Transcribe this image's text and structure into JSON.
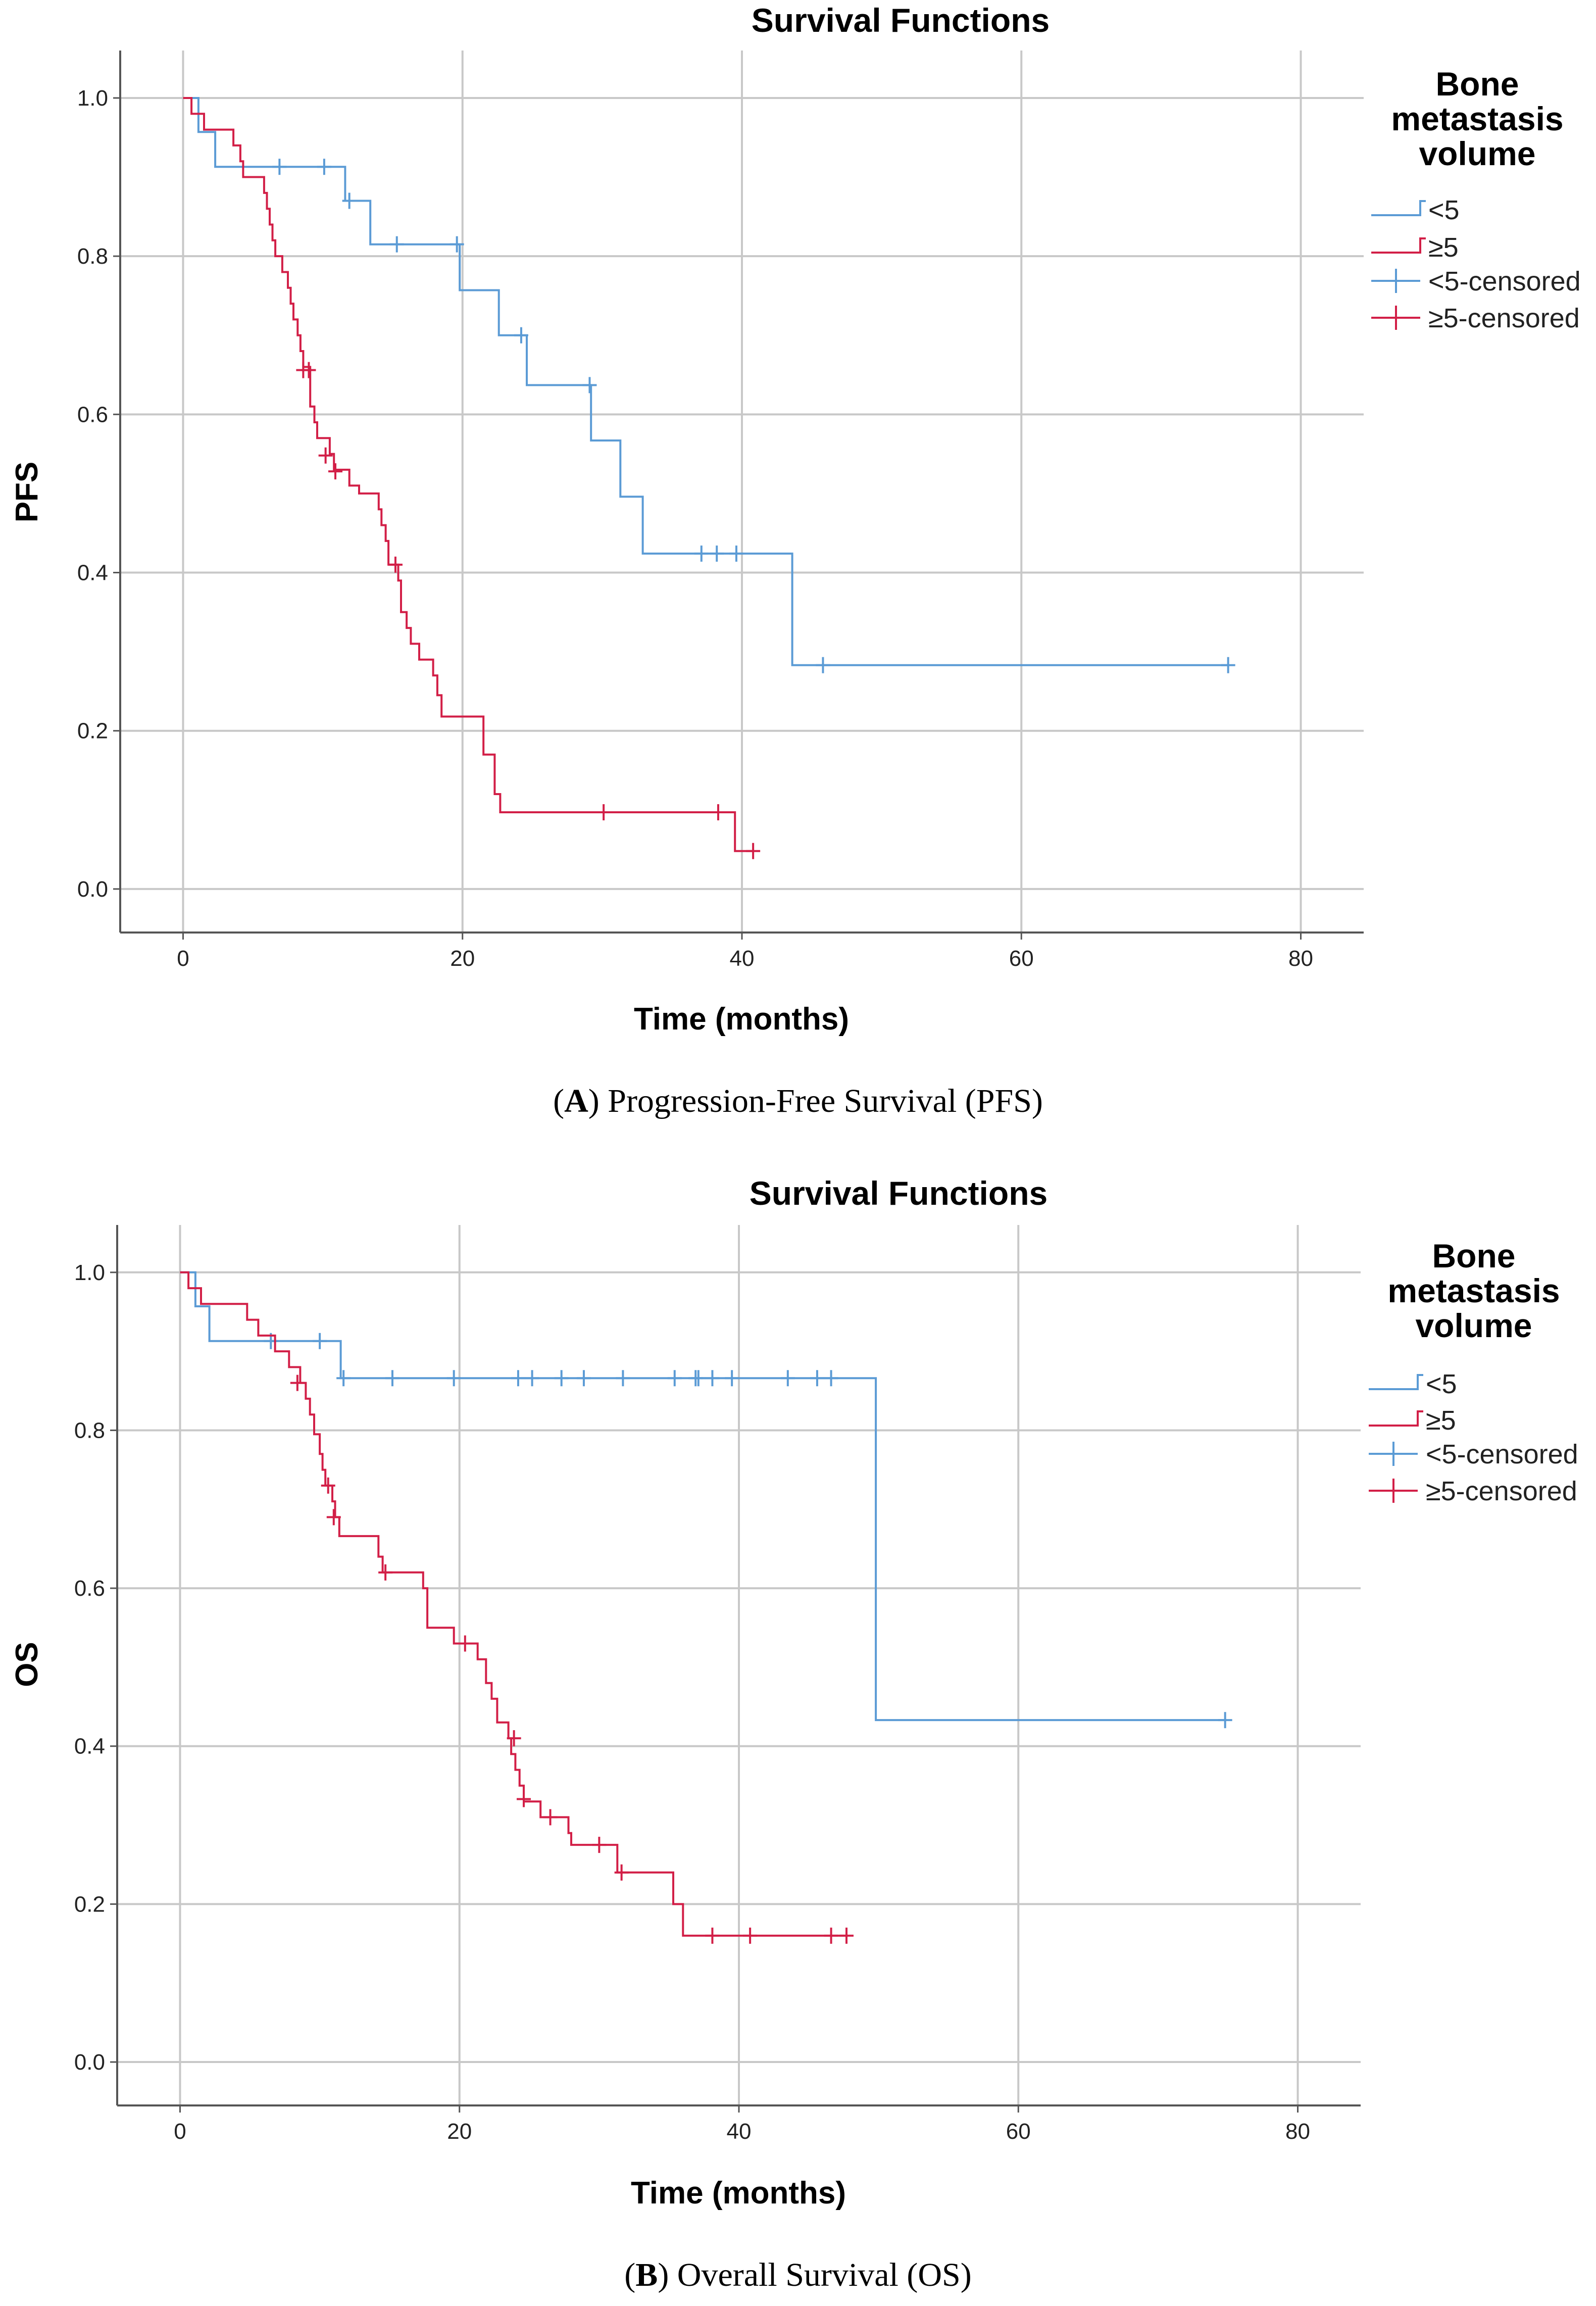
{
  "figure": {
    "captions": [
      {
        "letter": "A",
        "text": "Progression-Free Survival (PFS)"
      },
      {
        "letter": "B",
        "text": "Overall Survival (OS)"
      }
    ]
  },
  "colors": {
    "lt5": "#5b9bd5",
    "ge5": "#d21f47",
    "grid": "#c8c8c8",
    "axis": "#555555"
  },
  "chart_data": [
    {
      "type": "line",
      "subtype": "kaplan-meier",
      "title": "Survival Functions",
      "xlabel": "Time (months)",
      "ylabel": "PFS",
      "xlim": [
        -4.5,
        84.5
      ],
      "ylim": [
        -0.055,
        1.06
      ],
      "xticks": [
        0,
        20,
        40,
        60,
        80
      ],
      "yticks": [
        0.0,
        0.2,
        0.4,
        0.6,
        0.8,
        1.0
      ],
      "ytick_labels": [
        "0.0",
        "0.2",
        "0.4",
        "0.6",
        "0.8",
        "1.0"
      ],
      "grid": true,
      "legend": {
        "position": "right",
        "title": [
          "Bone",
          "metastasis",
          "volume"
        ],
        "entries": [
          "<5",
          "≥5",
          "<5-censored",
          "≥5-censored"
        ]
      },
      "series": [
        {
          "name": "<5",
          "color": "#5b9bd5",
          "steps": [
            [
              0,
              1.0
            ],
            [
              1.1,
              0.957
            ],
            [
              2.3,
              0.913
            ],
            [
              11.6,
              0.87
            ],
            [
              13.4,
              0.815
            ],
            [
              19.8,
              0.757
            ],
            [
              22.6,
              0.7
            ],
            [
              24.6,
              0.637
            ],
            [
              29.2,
              0.567
            ],
            [
              31.3,
              0.496
            ],
            [
              32.9,
              0.424
            ],
            [
              43.6,
              0.283
            ],
            [
              74.8,
              0.283
            ]
          ],
          "censored": [
            [
              6.9,
              0.913
            ],
            [
              10.1,
              0.913
            ],
            [
              11.9,
              0.87
            ],
            [
              15.3,
              0.815
            ],
            [
              19.6,
              0.815
            ],
            [
              24.2,
              0.7
            ],
            [
              29.1,
              0.637
            ],
            [
              37.1,
              0.424
            ],
            [
              38.2,
              0.424
            ],
            [
              39.6,
              0.424
            ],
            [
              45.8,
              0.283
            ],
            [
              74.8,
              0.283
            ]
          ]
        },
        {
          "name": "≥5",
          "color": "#d21f47",
          "steps": [
            [
              0,
              1.0
            ],
            [
              0.6,
              0.98
            ],
            [
              1.5,
              0.96
            ],
            [
              3.6,
              0.94
            ],
            [
              4.1,
              0.92
            ],
            [
              4.3,
              0.9
            ],
            [
              5.8,
              0.88
            ],
            [
              6.0,
              0.86
            ],
            [
              6.2,
              0.84
            ],
            [
              6.4,
              0.82
            ],
            [
              6.6,
              0.8
            ],
            [
              7.1,
              0.78
            ],
            [
              7.5,
              0.76
            ],
            [
              7.7,
              0.74
            ],
            [
              7.9,
              0.72
            ],
            [
              8.2,
              0.7
            ],
            [
              8.4,
              0.68
            ],
            [
              8.6,
              0.66
            ],
            [
              9.1,
              0.61
            ],
            [
              9.4,
              0.59
            ],
            [
              9.6,
              0.57
            ],
            [
              10.5,
              0.55
            ],
            [
              10.8,
              0.53
            ],
            [
              11.9,
              0.51
            ],
            [
              12.6,
              0.5
            ],
            [
              14.0,
              0.48
            ],
            [
              14.2,
              0.46
            ],
            [
              14.5,
              0.44
            ],
            [
              14.7,
              0.41
            ],
            [
              15.4,
              0.39
            ],
            [
              15.6,
              0.35
            ],
            [
              16.0,
              0.33
            ],
            [
              16.3,
              0.31
            ],
            [
              16.9,
              0.29
            ],
            [
              17.9,
              0.27
            ],
            [
              18.2,
              0.245
            ],
            [
              18.5,
              0.218
            ],
            [
              21.5,
              0.17
            ],
            [
              22.3,
              0.12
            ],
            [
              22.7,
              0.097
            ],
            [
              39.5,
              0.048
            ],
            [
              40.8,
              0.048
            ]
          ],
          "censored": [
            [
              8.6,
              0.656
            ],
            [
              9.0,
              0.656
            ],
            [
              10.2,
              0.548
            ],
            [
              10.9,
              0.528
            ],
            [
              15.2,
              0.41
            ],
            [
              30.1,
              0.097
            ],
            [
              38.3,
              0.097
            ],
            [
              40.8,
              0.048
            ]
          ]
        }
      ]
    },
    {
      "type": "line",
      "subtype": "kaplan-meier",
      "title": "Survival Functions",
      "xlabel": "Time (months)",
      "ylabel": "OS",
      "xlim": [
        -4.5,
        84.5
      ],
      "ylim": [
        -0.055,
        1.06
      ],
      "xticks": [
        0,
        20,
        40,
        60,
        80
      ],
      "yticks": [
        0.0,
        0.2,
        0.4,
        0.6,
        0.8,
        1.0
      ],
      "ytick_labels": [
        "0.0",
        "0.2",
        "0.4",
        "0.6",
        "0.8",
        "1.0"
      ],
      "grid": true,
      "legend": {
        "position": "right",
        "title": [
          "Bone",
          "metastasis",
          "volume"
        ],
        "entries": [
          "<5",
          "≥5",
          "<5-censored",
          "≥5-censored"
        ]
      },
      "series": [
        {
          "name": "<5",
          "color": "#5b9bd5",
          "steps": [
            [
              0,
              1.0
            ],
            [
              1.1,
              0.957
            ],
            [
              2.1,
              0.913
            ],
            [
              11.5,
              0.866
            ],
            [
              49.8,
              0.433
            ],
            [
              74.8,
              0.433
            ]
          ],
          "censored": [
            [
              6.5,
              0.913
            ],
            [
              10.0,
              0.913
            ],
            [
              11.7,
              0.866
            ],
            [
              15.2,
              0.866
            ],
            [
              19.6,
              0.866
            ],
            [
              24.2,
              0.866
            ],
            [
              25.2,
              0.866
            ],
            [
              27.3,
              0.866
            ],
            [
              28.9,
              0.866
            ],
            [
              31.7,
              0.866
            ],
            [
              35.4,
              0.866
            ],
            [
              36.9,
              0.866
            ],
            [
              37.1,
              0.866
            ],
            [
              38.1,
              0.866
            ],
            [
              39.5,
              0.866
            ],
            [
              43.5,
              0.866
            ],
            [
              45.6,
              0.866
            ],
            [
              46.6,
              0.866
            ],
            [
              74.8,
              0.433
            ]
          ]
        },
        {
          "name": "≥5",
          "color": "#d21f47",
          "steps": [
            [
              0,
              1.0
            ],
            [
              0.6,
              0.98
            ],
            [
              1.5,
              0.96
            ],
            [
              4.8,
              0.94
            ],
            [
              5.6,
              0.92
            ],
            [
              6.8,
              0.9
            ],
            [
              7.8,
              0.88
            ],
            [
              8.6,
              0.86
            ],
            [
              9.0,
              0.84
            ],
            [
              9.3,
              0.82
            ],
            [
              9.6,
              0.795
            ],
            [
              10.0,
              0.77
            ],
            [
              10.2,
              0.75
            ],
            [
              10.4,
              0.73
            ],
            [
              10.9,
              0.71
            ],
            [
              11.1,
              0.69
            ],
            [
              11.4,
              0.666
            ],
            [
              14.2,
              0.64
            ],
            [
              14.5,
              0.62
            ],
            [
              17.4,
              0.6
            ],
            [
              17.7,
              0.55
            ],
            [
              19.6,
              0.53
            ],
            [
              21.3,
              0.51
            ],
            [
              21.9,
              0.48
            ],
            [
              22.3,
              0.46
            ],
            [
              22.7,
              0.43
            ],
            [
              23.5,
              0.41
            ],
            [
              23.7,
              0.39
            ],
            [
              24.0,
              0.37
            ],
            [
              24.3,
              0.35
            ],
            [
              24.6,
              0.33
            ],
            [
              25.8,
              0.31
            ],
            [
              27.8,
              0.29
            ],
            [
              28.0,
              0.275
            ],
            [
              31.3,
              0.24
            ],
            [
              35.3,
              0.2
            ],
            [
              36.0,
              0.16
            ],
            [
              47.8,
              0.16
            ]
          ],
          "censored": [
            [
              8.4,
              0.86
            ],
            [
              10.6,
              0.73
            ],
            [
              11.0,
              0.69
            ],
            [
              14.7,
              0.62
            ],
            [
              20.4,
              0.53
            ],
            [
              23.9,
              0.41
            ],
            [
              24.6,
              0.333
            ],
            [
              26.5,
              0.31
            ],
            [
              30.0,
              0.275
            ],
            [
              31.6,
              0.24
            ],
            [
              38.1,
              0.16
            ],
            [
              40.8,
              0.16
            ],
            [
              46.6,
              0.16
            ],
            [
              47.7,
              0.16
            ]
          ]
        }
      ]
    }
  ]
}
